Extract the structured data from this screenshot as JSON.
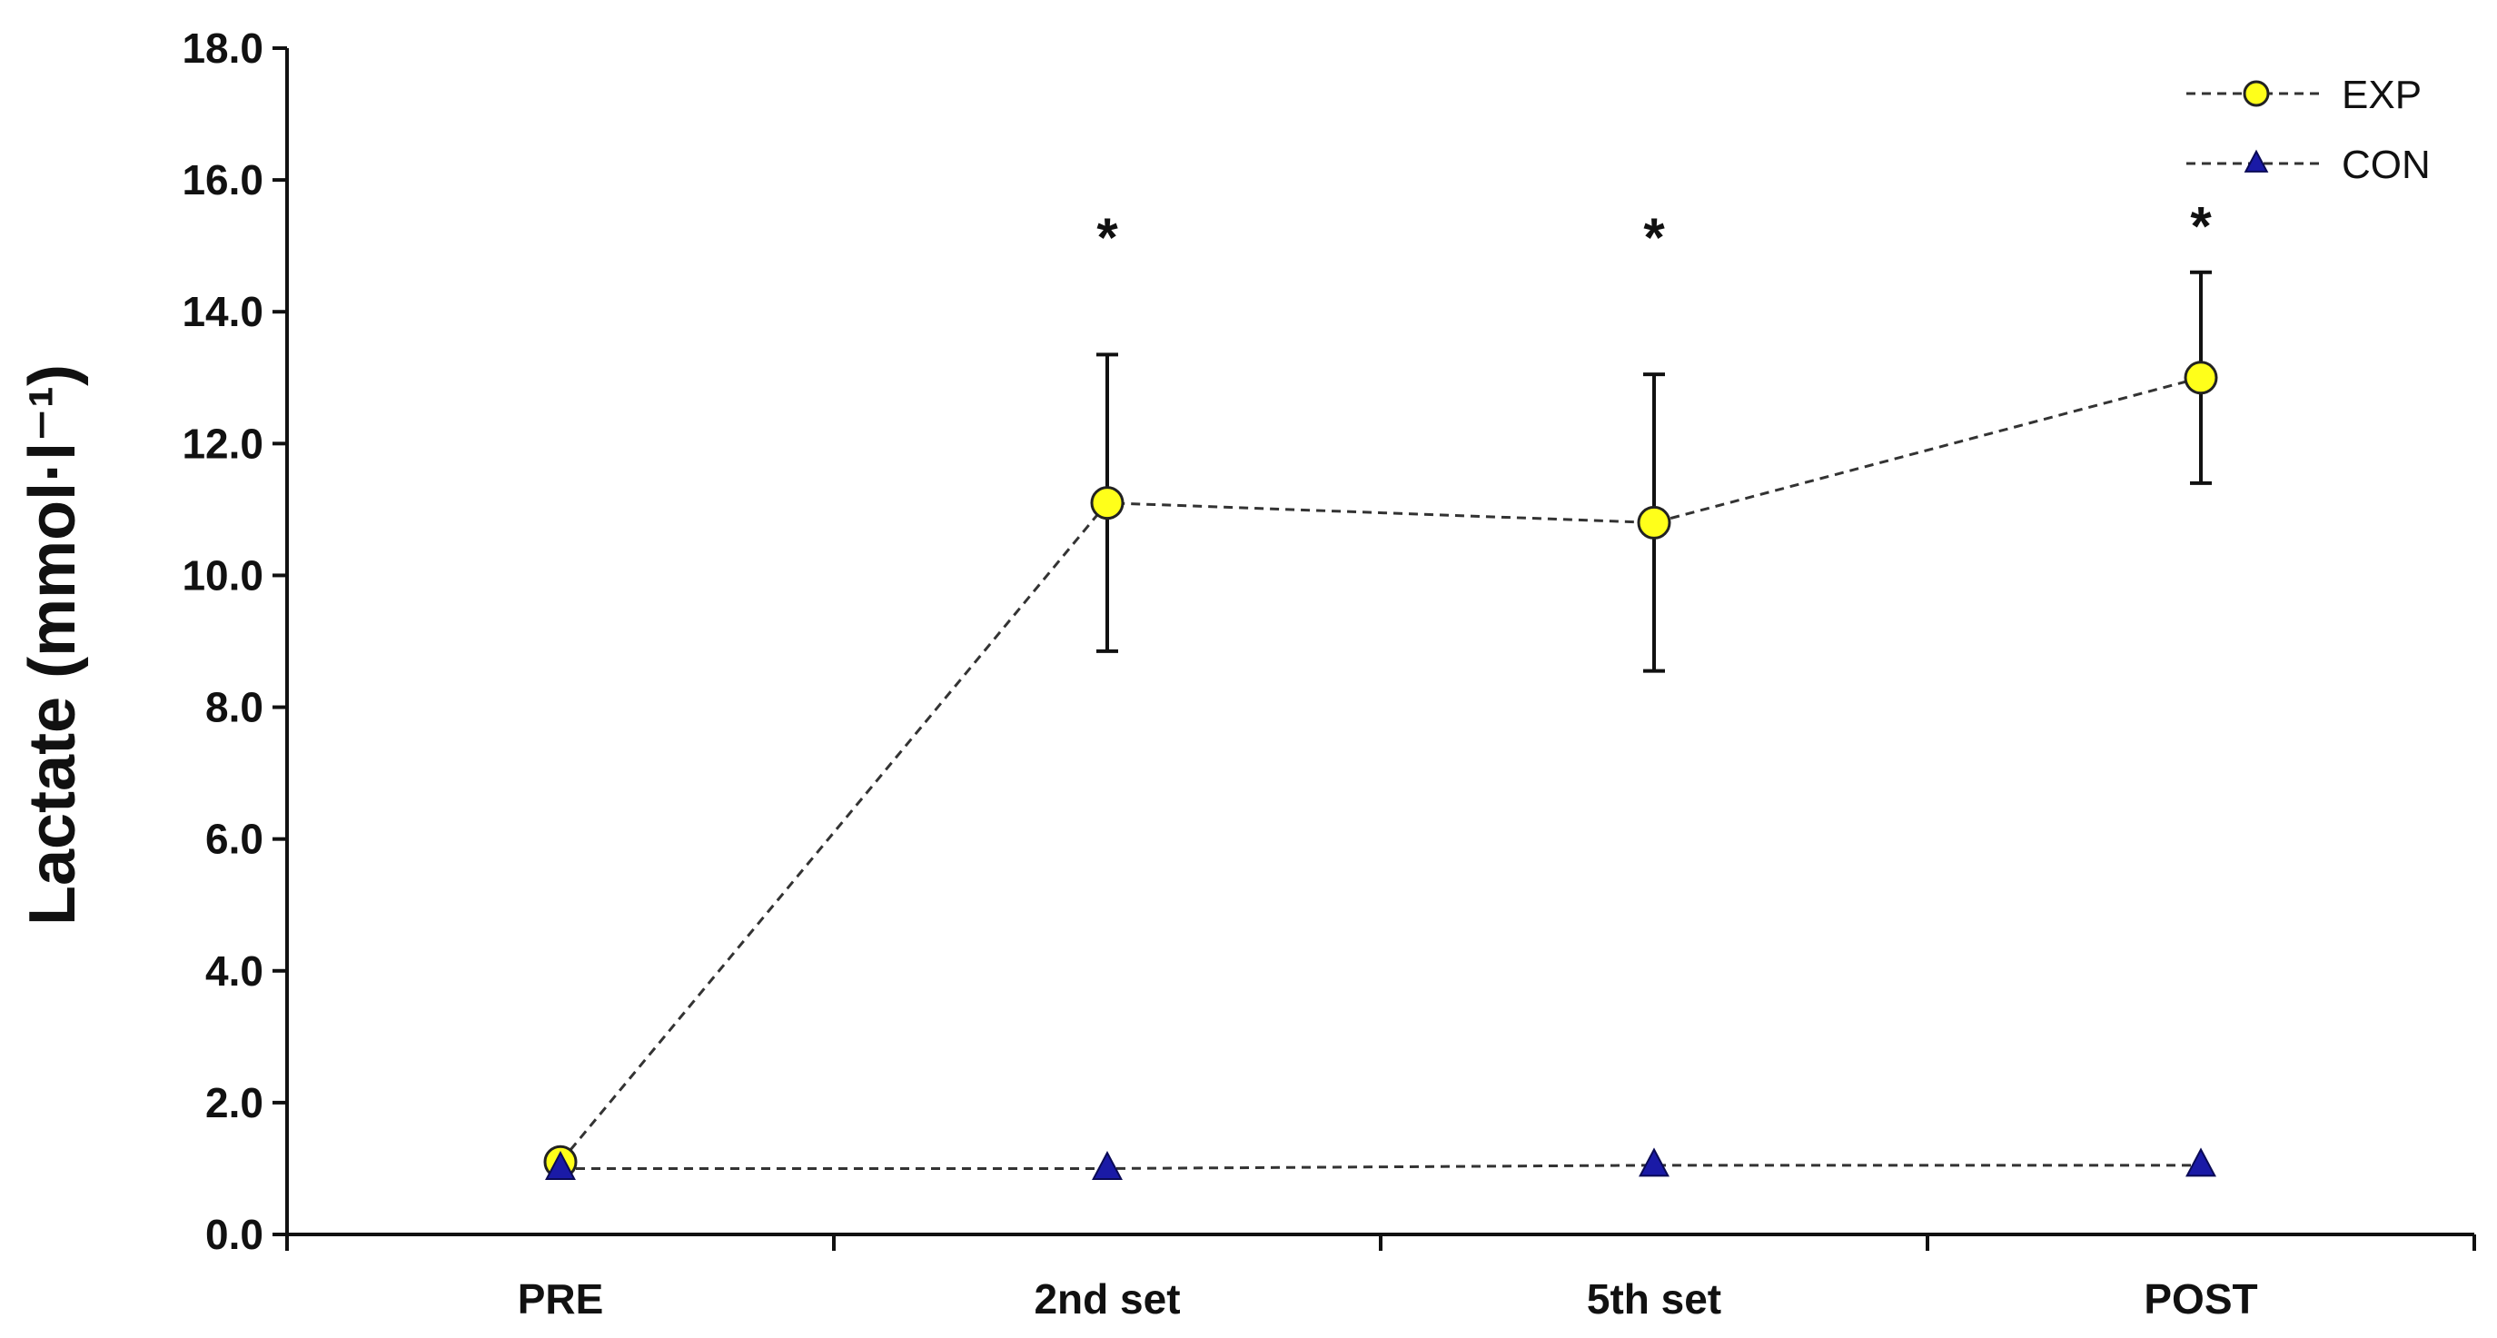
{
  "chart_data": {
    "type": "line",
    "title": "",
    "xlabel": "",
    "ylabel": "Lactate (mmol·l⁻¹)",
    "categories": [
      "PRE",
      "2nd set",
      "5th set",
      "POST"
    ],
    "ylim": [
      0,
      18
    ],
    "yticks": [
      "0.0",
      "2.0",
      "4.0",
      "6.0",
      "8.0",
      "10.0",
      "12.0",
      "14.0",
      "16.0",
      "18.0"
    ],
    "grid": false,
    "legend_position": "top-right",
    "series": [
      {
        "name": "EXP",
        "values": [
          1.1,
          11.1,
          10.8,
          13.0
        ],
        "error": [
          0,
          2.25,
          2.25,
          1.6
        ],
        "marker": "circle",
        "color": "#ffff1a",
        "line_style": "dashed"
      },
      {
        "name": "CON",
        "values": [
          1.0,
          1.0,
          1.05,
          1.05
        ],
        "error": [
          0,
          0,
          0,
          0
        ],
        "marker": "triangle",
        "color": "#1a1aa6",
        "line_style": "dashed"
      }
    ],
    "annotations": [
      {
        "category": "2nd set",
        "text": "*"
      },
      {
        "category": "5th set",
        "text": "*"
      },
      {
        "category": "POST",
        "text": "*"
      }
    ]
  }
}
